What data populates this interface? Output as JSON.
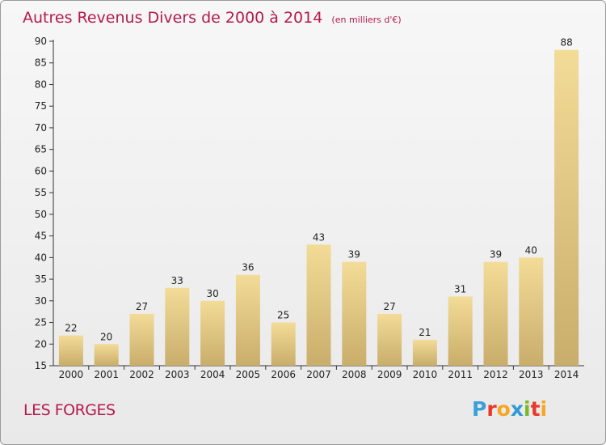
{
  "header": {
    "title": "Autres Revenus Divers de 2000 à 2014",
    "subtitle": "(en milliers d'€)"
  },
  "footer": {
    "commune": "LES FORGES",
    "logo_letters": [
      "P",
      "r",
      "o",
      "x",
      "i",
      "t",
      "i"
    ],
    "logo_colors": [
      "#3aa0db",
      "#e8392b",
      "#f5a623",
      "#2e9ad6",
      "#78b82a",
      "#e8392b",
      "#f5a623"
    ]
  },
  "colors": {
    "title": "#b5194f",
    "bar_light": "#f3dc97",
    "bar_dark": "#c9ad6b",
    "axis": "#333333"
  },
  "chart_data": {
    "type": "bar",
    "title": "Autres Revenus Divers de 2000 à 2014",
    "subtitle": "(en milliers d'€)",
    "categories": [
      "2000",
      "2001",
      "2002",
      "2003",
      "2004",
      "2005",
      "2006",
      "2007",
      "2008",
      "2009",
      "2010",
      "2011",
      "2012",
      "2013",
      "2014"
    ],
    "values": [
      22,
      20,
      27,
      33,
      30,
      36,
      25,
      43,
      39,
      27,
      21,
      31,
      39,
      40,
      88
    ],
    "ylim": [
      15,
      90
    ],
    "yticks": [
      15,
      20,
      25,
      30,
      35,
      40,
      45,
      50,
      55,
      60,
      65,
      70,
      75,
      80,
      85,
      90
    ],
    "grid": false,
    "data_labels": true
  }
}
